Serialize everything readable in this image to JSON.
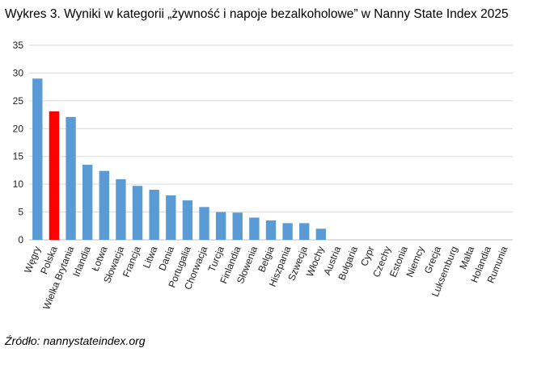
{
  "title": "Wykres  3. Wyniki w kategorii „żywność i napoje bezalkoholowe” w Nanny State Index 2025",
  "source": "Źródło: nannystateindex.org",
  "colors": {
    "default": "#5b9bd5",
    "highlight": "#ff0000",
    "grid": "#d9d9d9"
  },
  "chart_data": {
    "type": "bar",
    "title": "Wykres  3. Wyniki w kategorii „żywność i napoje bezalkoholowe” w Nanny State Index 2025",
    "xlabel": "",
    "ylabel": "",
    "ylim": [
      0,
      35
    ],
    "yticks": [
      0,
      5,
      10,
      15,
      20,
      25,
      30,
      35
    ],
    "grid": true,
    "legend": "none",
    "highlight": "Polska",
    "categories": [
      "Węgry",
      "Polska",
      "Wielka Brytania",
      "Irlandia",
      "Łotwa",
      "Słowacja",
      "Francja",
      "Litwa",
      "Dania",
      "Portugalia",
      "Chorwacja",
      "Turcja",
      "Finlandia",
      "Słowenia",
      "Belgia",
      "Hiszpania",
      "Szwecja",
      "Włochy",
      "Austria",
      "Bułgaria",
      "Cypr",
      "Czechy",
      "Estonia",
      "Niemcy",
      "Grecja",
      "Luksemburg",
      "Malta",
      "Holandia",
      "Rumunia"
    ],
    "values": [
      29,
      23.1,
      22.1,
      13.5,
      12.4,
      10.9,
      9.7,
      9.0,
      8.0,
      7.1,
      5.9,
      5.0,
      4.9,
      4.0,
      3.5,
      3.0,
      3.0,
      2.0,
      0,
      0,
      0,
      0,
      0,
      0,
      0,
      0,
      0,
      0,
      0
    ]
  }
}
